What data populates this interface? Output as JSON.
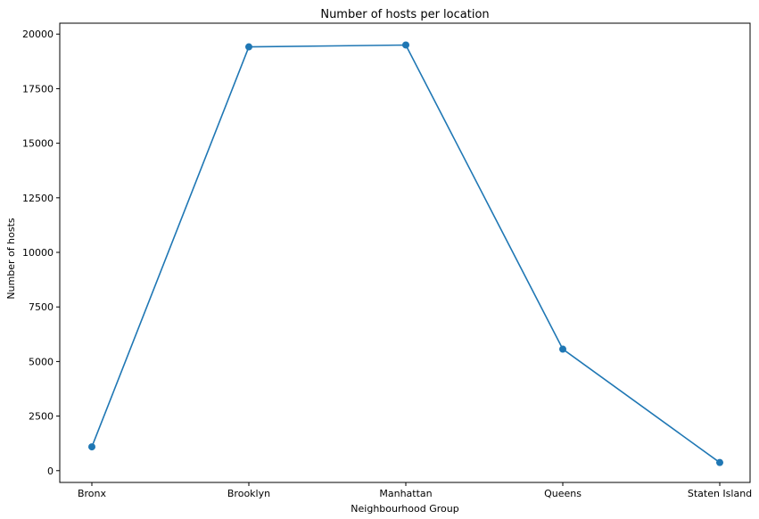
{
  "chart_data": {
    "type": "line",
    "title": "Number of hosts per location",
    "xlabel": "Neighbourhood Group",
    "ylabel": "Number of hosts",
    "categories": [
      "Bronx",
      "Brooklyn",
      "Manhattan",
      "Queens",
      "Staten Island"
    ],
    "series": [
      {
        "values": [
          1090,
          19415,
          19501,
          5567,
          373
        ],
        "color": "#1f77b4"
      }
    ],
    "ylim": [
      -540,
      20500
    ],
    "yticks": [
      0,
      2500,
      5000,
      7500,
      10000,
      12500,
      15000,
      17500,
      20000
    ],
    "ytick_labels": [
      "0",
      "2500",
      "5000",
      "7500",
      "10000",
      "12500",
      "15000",
      "17500",
      "20000"
    ],
    "grid": false,
    "legend": "none",
    "markers": true
  }
}
